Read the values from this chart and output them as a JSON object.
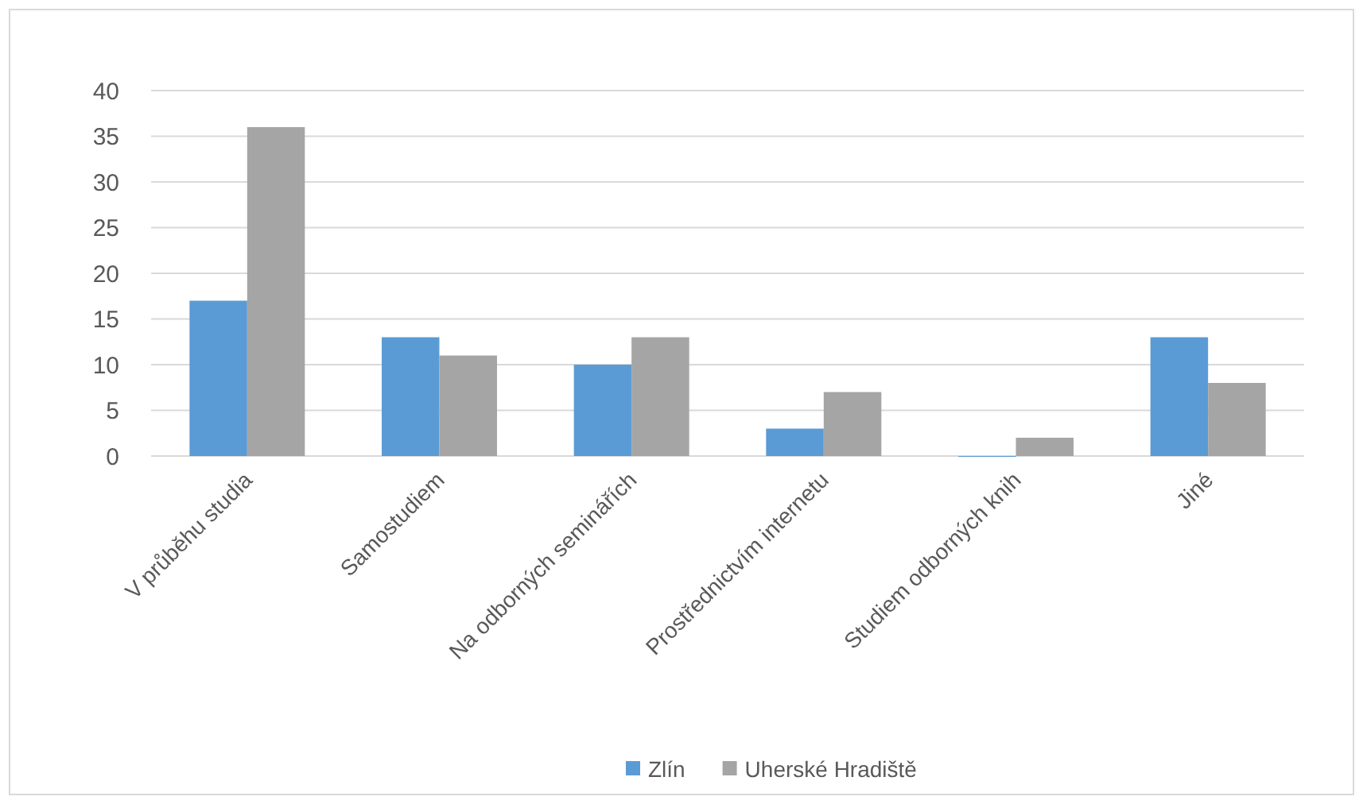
{
  "chart_data": {
    "type": "bar",
    "categories": [
      "V průběhu studia",
      "Samostudiem",
      "Na odborných seminářích",
      "Prostřednictvím internetu",
      "Studiem odborných knih",
      "Jiné"
    ],
    "series": [
      {
        "name": "Zlín",
        "color": "#5b9bd5",
        "values": [
          17,
          13,
          10,
          3,
          0,
          13
        ]
      },
      {
        "name": "Uherské Hradiště",
        "color": "#a5a5a5",
        "values": [
          36,
          11,
          13,
          7,
          2,
          8
        ]
      }
    ],
    "ylim": [
      0,
      40
    ],
    "yticks": [
      0,
      5,
      10,
      15,
      20,
      25,
      30,
      35,
      40
    ],
    "grid": "y",
    "legend": "bottom"
  }
}
